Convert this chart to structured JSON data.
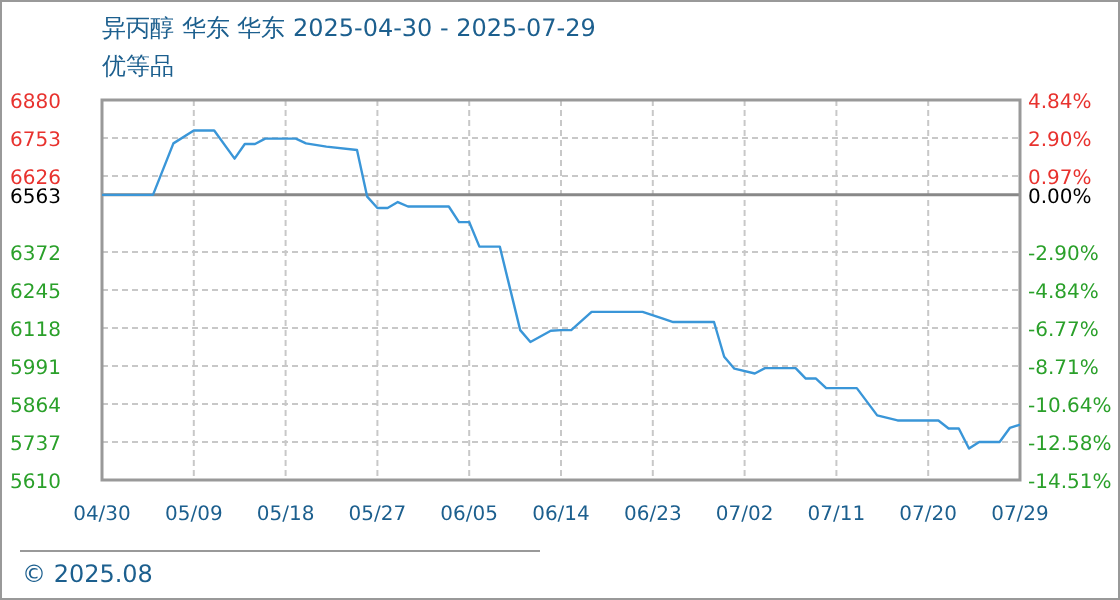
{
  "chart_data": {
    "type": "line",
    "title": "异丙醇 华东 华东 2025-04-30 - 2025-07-29",
    "subtitle": "优等品",
    "annotations": [
      "© 2025.08"
    ],
    "x": [
      "2025-04-30",
      "2025-05-05",
      "2025-05-07",
      "2025-05-09",
      "2025-05-11",
      "2025-05-13",
      "2025-05-14",
      "2025-05-15",
      "2025-05-16",
      "2025-05-19",
      "2025-05-20",
      "2025-05-22",
      "2025-05-25",
      "2025-05-26",
      "2025-05-27",
      "2025-05-28",
      "2025-05-29",
      "2025-05-30",
      "2025-06-03",
      "2025-06-04",
      "2025-06-05",
      "2025-06-06",
      "2025-06-08",
      "2025-06-10",
      "2025-06-11",
      "2025-06-13",
      "2025-06-14",
      "2025-06-15",
      "2025-06-17",
      "2025-06-22",
      "2025-06-24",
      "2025-06-25",
      "2025-06-29",
      "2025-06-30",
      "2025-07-01",
      "2025-07-03",
      "2025-07-04",
      "2025-07-07",
      "2025-07-08",
      "2025-07-09",
      "2025-07-10",
      "2025-07-13",
      "2025-07-15",
      "2025-07-17",
      "2025-07-21",
      "2025-07-22",
      "2025-07-23",
      "2025-07-24",
      "2025-07-25",
      "2025-07-27",
      "2025-07-28",
      "2025-07-29"
    ],
    "series": [
      {
        "color": "#3a96d8",
        "values": [
          6563,
          6563,
          6735,
          6778,
          6778,
          6684,
          6733,
          6733,
          6751,
          6751,
          6735,
          6724,
          6713,
          6557,
          6519,
          6519,
          6539,
          6524,
          6524,
          6472,
          6472,
          6390,
          6390,
          6111,
          6071,
          6109,
          6111,
          6111,
          6172,
          6172,
          6149,
          6138,
          6138,
          6022,
          5982,
          5966,
          5984,
          5984,
          5949,
          5949,
          5917,
          5917,
          5826,
          5809,
          5809,
          5782,
          5782,
          5715,
          5737,
          5737,
          5784,
          5795
        ]
      }
    ],
    "xlim": [
      "2025-04-30",
      "2025-07-29"
    ],
    "xticks": [
      {
        "value": "2025-04-30",
        "label": "04/30"
      },
      {
        "value": "2025-05-09",
        "label": "05/09"
      },
      {
        "value": "2025-05-18",
        "label": "05/18"
      },
      {
        "value": "2025-05-27",
        "label": "05/27"
      },
      {
        "value": "2025-06-05",
        "label": "06/05"
      },
      {
        "value": "2025-06-14",
        "label": "06/14"
      },
      {
        "value": "2025-06-23",
        "label": "06/23"
      },
      {
        "value": "2025-07-02",
        "label": "07/02"
      },
      {
        "value": "2025-07-11",
        "label": "07/11"
      },
      {
        "value": "2025-07-20",
        "label": "07/20"
      },
      {
        "value": "2025-07-29",
        "label": "07/29"
      }
    ],
    "ylim": [
      5610,
      6880
    ],
    "yticks": [
      6880,
      6753,
      6626,
      6563,
      6372,
      6245,
      6118,
      5991,
      5864,
      5737,
      5610
    ],
    "y2lim": [
      -14.51,
      4.84
    ],
    "y2ticks": [
      {
        "value": 4.84,
        "label": "4.84%"
      },
      {
        "value": 2.9,
        "label": "2.90%"
      },
      {
        "value": 0.97,
        "label": "0.97%"
      },
      {
        "value": 0,
        "label": "0.00%"
      },
      {
        "value": -2.9,
        "label": "-2.90%"
      },
      {
        "value": -4.84,
        "label": "-4.84%"
      },
      {
        "value": -6.77,
        "label": "-6.77%"
      },
      {
        "value": -8.71,
        "label": "-8.71%"
      },
      {
        "value": -10.64,
        "label": "-10.64%"
      },
      {
        "value": -12.58,
        "label": "-12.58%"
      },
      {
        "value": -14.51,
        "label": "-14.51%"
      }
    ],
    "ref_lines": [
      {
        "axis": "y",
        "value": 6563,
        "color": "#888888"
      }
    ],
    "grid": true
  }
}
